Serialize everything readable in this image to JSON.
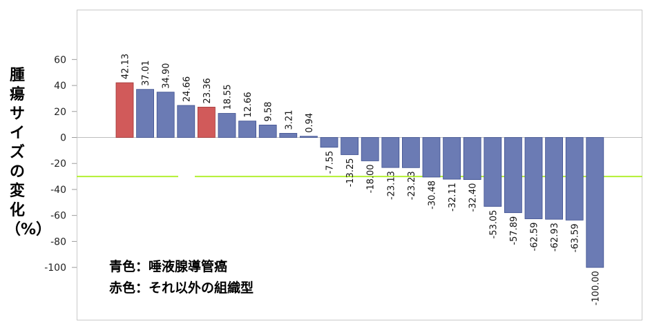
{
  "chart_data": {
    "type": "bar",
    "ylabel": "腫瘍サイズの変化（%）",
    "xlabel": "",
    "yticks": [
      60,
      40,
      20,
      0,
      -20,
      -40,
      -60,
      -80,
      -100
    ],
    "ylim": [
      -130,
      98
    ],
    "reference_line": {
      "y": -30,
      "color": "#b3f032"
    },
    "grid": false,
    "values": [
      42.13,
      37.01,
      34.9,
      24.66,
      23.36,
      18.55,
      12.66,
      9.58,
      3.21,
      0.94,
      -7.55,
      -13.25,
      -18.0,
      -23.13,
      -23.23,
      -30.48,
      -32.11,
      -32.4,
      -53.05,
      -57.89,
      -62.59,
      -62.93,
      -63.59,
      -100.0
    ],
    "labels": [
      "42.13",
      "37.01",
      "34.90",
      "24.66",
      "23.36",
      "18.55",
      "12.66",
      "9.58",
      "3.21",
      "0.94",
      "-7.55",
      "-13.25",
      "-18.00",
      "-23.13",
      "-23.23",
      "-30.48",
      "-32.11",
      "-32.40",
      "-53.05",
      "-57.89",
      "-62.59",
      "-62.93",
      "-63.59",
      "-100.00"
    ],
    "colors": [
      "red",
      "blue",
      "blue",
      "blue",
      "red",
      "blue",
      "blue",
      "blue",
      "blue",
      "blue",
      "blue",
      "blue",
      "blue",
      "blue",
      "blue",
      "blue",
      "blue",
      "blue",
      "blue",
      "blue",
      "blue",
      "blue",
      "blue",
      "blue"
    ],
    "palette": {
      "blue": "#6b7bb4",
      "red": "#d15a5a",
      "blue_edge": "#3d4f8f",
      "red_edge": "#9e3434"
    },
    "legend": {
      "line1": "青色：唾液腺導管癌",
      "line2": "赤色：それ以外の組織型"
    }
  }
}
